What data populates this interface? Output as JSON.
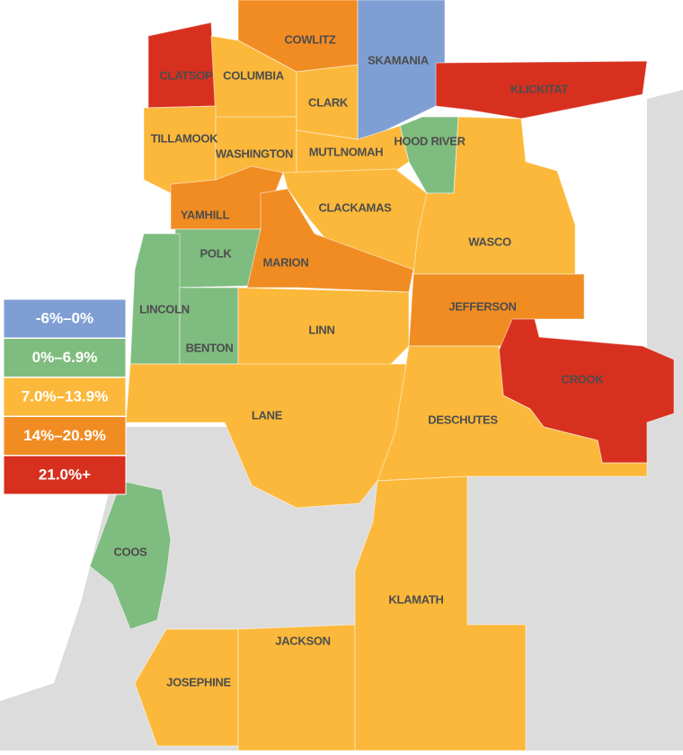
{
  "legend": [
    {
      "label": "-6%–0%",
      "color": "#7f9fd4"
    },
    {
      "label": "0%–6.9%",
      "color": "#7fbc7f"
    },
    {
      "label": "7.0%–13.9%",
      "color": "#fbb83a"
    },
    {
      "label": "14%–20.9%",
      "color": "#f18c22"
    },
    {
      "label": "21.0%+",
      "color": "#d7301f"
    }
  ],
  "counties": [
    {
      "name": "CLATSOP",
      "color": "#d7301f"
    },
    {
      "name": "COWLITZ",
      "color": "#f18c22"
    },
    {
      "name": "SKAMANIA",
      "color": "#7f9fd4"
    },
    {
      "name": "KLICKITAT",
      "color": "#d7301f"
    },
    {
      "name": "COLUMBIA",
      "color": "#fbb83a"
    },
    {
      "name": "CLARK",
      "color": "#fbb83a"
    },
    {
      "name": "HOOD RIVER",
      "color": "#7fbc7f"
    },
    {
      "name": "TILLAMOOK",
      "color": "#fbb83a"
    },
    {
      "name": "WASHINGTON",
      "color": "#fbb83a"
    },
    {
      "name": "MUTLNOMAH",
      "color": "#fbb83a"
    },
    {
      "name": "YAMHILL",
      "color": "#f18c22"
    },
    {
      "name": "CLACKAMAS",
      "color": "#fbb83a"
    },
    {
      "name": "WASCO",
      "color": "#fbb83a"
    },
    {
      "name": "POLK",
      "color": "#7fbc7f"
    },
    {
      "name": "MARION",
      "color": "#f18c22"
    },
    {
      "name": "LINCOLN",
      "color": "#7fbc7f"
    },
    {
      "name": "BENTON",
      "color": "#7fbc7f"
    },
    {
      "name": "LINN",
      "color": "#fbb83a"
    },
    {
      "name": "JEFFERSON",
      "color": "#f18c22"
    },
    {
      "name": "CROOK",
      "color": "#d7301f"
    },
    {
      "name": "LANE",
      "color": "#fbb83a"
    },
    {
      "name": "DESCHUTES",
      "color": "#fbb83a"
    },
    {
      "name": "COOS",
      "color": "#7fbc7f"
    },
    {
      "name": "JOSEPHINE",
      "color": "#fbb83a"
    },
    {
      "name": "JACKSON",
      "color": "#fbb83a"
    },
    {
      "name": "KLAMATH",
      "color": "#fbb83a"
    }
  ]
}
